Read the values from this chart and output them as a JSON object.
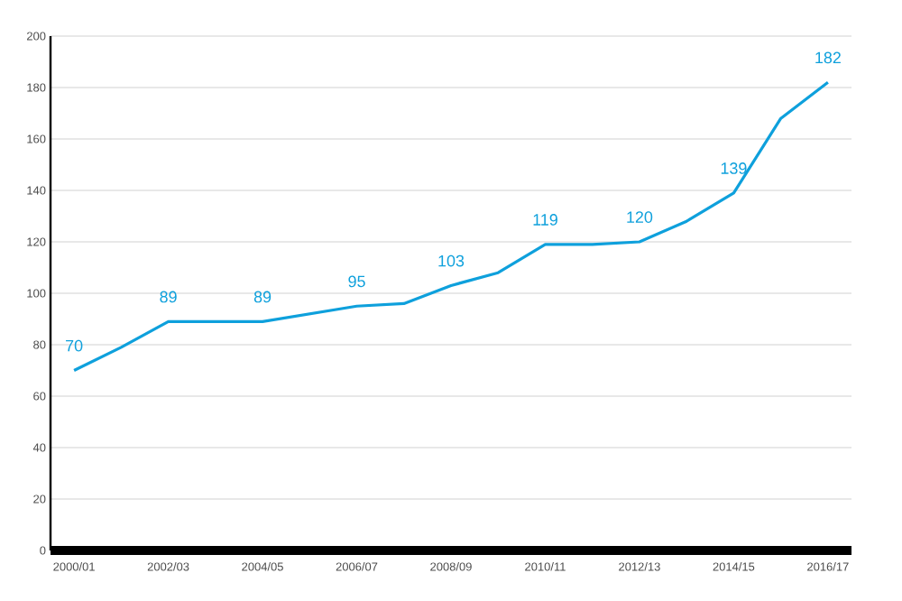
{
  "chart_data": {
    "type": "line",
    "categories": [
      "2000/01",
      null,
      "2002/03",
      null,
      "2004/05",
      null,
      "2006/07",
      null,
      "2008/09",
      null,
      "2010/11",
      null,
      "2012/13",
      null,
      "2014/15",
      null,
      "2016/17"
    ],
    "values": [
      70,
      79,
      89,
      89,
      89,
      92,
      95,
      96,
      103,
      108,
      119,
      119,
      120,
      128,
      139,
      168,
      182
    ],
    "value_labels": [
      "70",
      null,
      "89",
      null,
      "89",
      null,
      "95",
      null,
      "103",
      null,
      "119",
      null,
      "120",
      null,
      "139",
      null,
      "182"
    ],
    "color": "#0ea0dc",
    "ylim": [
      0,
      200
    ],
    "yticks": [
      0,
      20,
      40,
      60,
      80,
      100,
      120,
      140,
      160,
      180,
      200
    ],
    "grid": "y",
    "marker": "none",
    "line_style": "solid"
  }
}
